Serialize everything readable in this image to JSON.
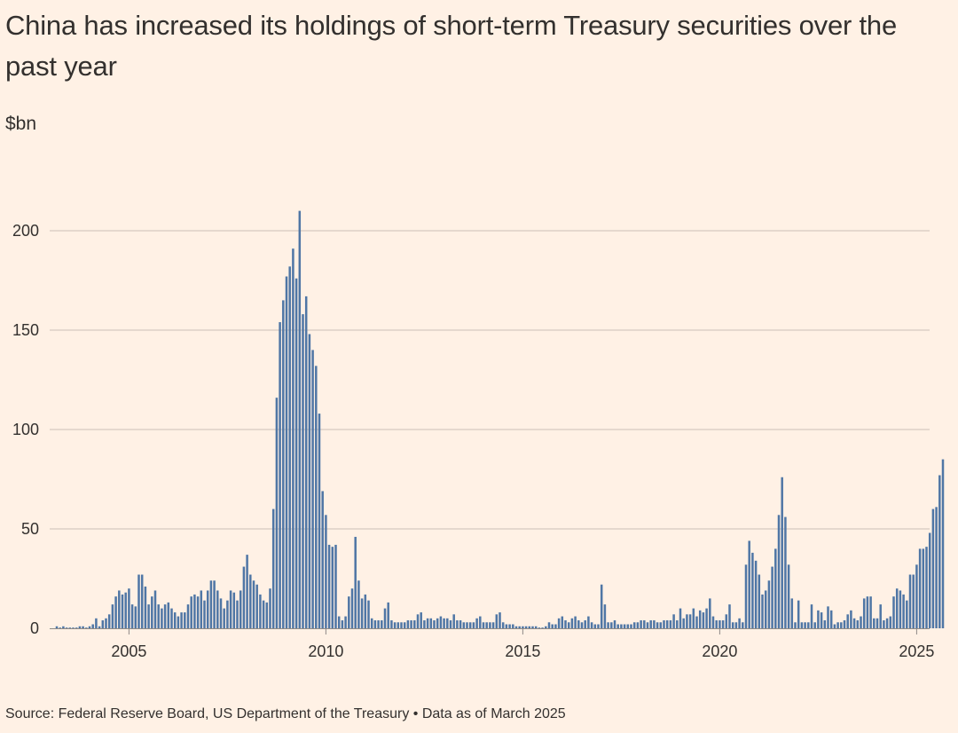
{
  "header": {
    "title": "China has increased its holdings of short-term Treasury securities over the past year",
    "unit": "$bn"
  },
  "footer": {
    "source": "Source: Federal Reserve Board, US Department of the Treasury • Data as of March 2025"
  },
  "colors": {
    "background": "#fff1e5",
    "bar": "#4f76a5",
    "grid": "#cbbfb6",
    "text": "#33302e"
  },
  "chart_data": {
    "type": "bar",
    "title": "China has increased its holdings of short-term Treasury securities over the past year",
    "ylabel": "$bn",
    "xlabel": "",
    "ylim": [
      0,
      225
    ],
    "yticks": [
      0,
      50,
      100,
      150,
      200
    ],
    "xticks": [
      {
        "year": 2005,
        "label": "2005"
      },
      {
        "year": 2010,
        "label": "2010"
      },
      {
        "year": 2015,
        "label": "2015"
      },
      {
        "year": 2020,
        "label": "2020"
      },
      {
        "year": 2025,
        "label": "2025"
      }
    ],
    "grid": true,
    "frequency": "monthly",
    "start": "2003-03",
    "end": "2025-03",
    "series": [
      {
        "name": "",
        "values": [
          1,
          0,
          1,
          0,
          0,
          0,
          0,
          1,
          1,
          0,
          1,
          2,
          5,
          1,
          4,
          5,
          7,
          12,
          16,
          19,
          17,
          18,
          20,
          12,
          11,
          27,
          27,
          21,
          12,
          16,
          19,
          12,
          10,
          12,
          13,
          10,
          8,
          6,
          8,
          8,
          12,
          16,
          17,
          16,
          19,
          14,
          19,
          24,
          24,
          19,
          15,
          10,
          14,
          19,
          18,
          14,
          19,
          31,
          37,
          27,
          24,
          22,
          17,
          14,
          13,
          20,
          60,
          116,
          154,
          165,
          177,
          182,
          191,
          176,
          210,
          158,
          167,
          148,
          140,
          132,
          108,
          69,
          57,
          42,
          41,
          42,
          6,
          4,
          6,
          16,
          20,
          46,
          24,
          15,
          17,
          14,
          5,
          4,
          4,
          4,
          10,
          13,
          4,
          3,
          3,
          3,
          3,
          4,
          4,
          4,
          7,
          8,
          4,
          5,
          5,
          4,
          5,
          6,
          5,
          5,
          4,
          7,
          4,
          4,
          3,
          3,
          3,
          3,
          5,
          6,
          3,
          3,
          3,
          3,
          7,
          8,
          3,
          2,
          2,
          2,
          1,
          1,
          1,
          1,
          1,
          1,
          1,
          0,
          0,
          1,
          3,
          2,
          2,
          5,
          6,
          4,
          3,
          5,
          6,
          4,
          3,
          4,
          6,
          3,
          2,
          2,
          22,
          12,
          3,
          3,
          4,
          2,
          2,
          2,
          2,
          2,
          3,
          3,
          4,
          4,
          3,
          4,
          4,
          3,
          3,
          4,
          4,
          4,
          7,
          4,
          10,
          5,
          7,
          7,
          10,
          6,
          9,
          8,
          10,
          15,
          6,
          4,
          4,
          4,
          7,
          12,
          3,
          3,
          5,
          3,
          32,
          44,
          38,
          34,
          27,
          17,
          19,
          24,
          31,
          40,
          57,
          76,
          56,
          32,
          15,
          3,
          14,
          3,
          3,
          3,
          12,
          3,
          9,
          8,
          4,
          11,
          9,
          2,
          3,
          3,
          4,
          7,
          9,
          5,
          4,
          6,
          15,
          16,
          16,
          5,
          5,
          12,
          4,
          5,
          6,
          16,
          20,
          19,
          17,
          14,
          27,
          27,
          32,
          40,
          40,
          41,
          48,
          60,
          61,
          77,
          85
        ]
      }
    ]
  }
}
